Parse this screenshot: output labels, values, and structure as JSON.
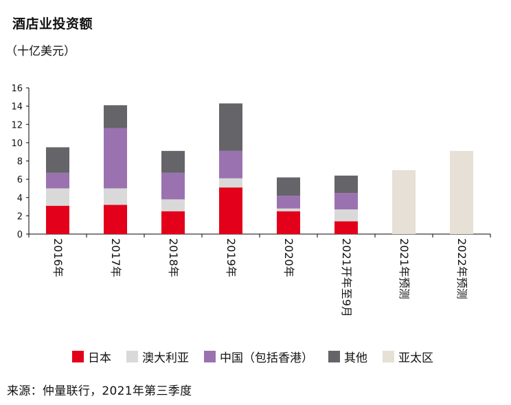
{
  "chart_data": {
    "type": "bar",
    "stacked": true,
    "title": "酒店业投资额",
    "subtitle": "（十亿美元）",
    "categories": [
      "2016年",
      "2017年",
      "2018年",
      "2019年",
      "2020年",
      "2021开年至9月",
      "2021年预测",
      "2022年预测"
    ],
    "ylim": [
      0,
      16
    ],
    "yticks": [
      0,
      2,
      4,
      6,
      8,
      10,
      12,
      14,
      16
    ],
    "series": [
      {
        "name": "日本",
        "color": "#e2001a",
        "values": [
          3.1,
          3.2,
          2.5,
          5.1,
          2.5,
          1.4,
          null,
          null
        ]
      },
      {
        "name": "澳大利亚",
        "color": "#d9d9d9",
        "values": [
          1.9,
          1.8,
          1.3,
          1.0,
          0.3,
          1.3,
          null,
          null
        ]
      },
      {
        "name": "中国（包括香港）",
        "color": "#9b72b0",
        "values": [
          1.7,
          6.6,
          2.9,
          3.0,
          1.4,
          1.8,
          null,
          null
        ]
      },
      {
        "name": "其他",
        "color": "#646469",
        "values": [
          2.8,
          2.5,
          2.4,
          5.2,
          2.0,
          1.9,
          null,
          null
        ]
      },
      {
        "name": "亚太区",
        "color": "#e6e0d6",
        "values": [
          null,
          null,
          null,
          null,
          null,
          null,
          7.0,
          9.1
        ]
      }
    ]
  },
  "source": "来源：仲量联行，2021年第三季度"
}
